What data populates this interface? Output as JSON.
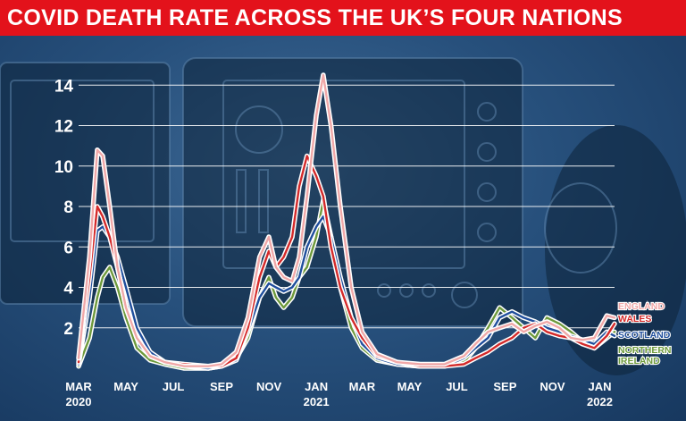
{
  "header": {
    "title": "COVID DEATH RATE ACROSS THE UK’S FOUR NATIONS"
  },
  "chart_data": {
    "type": "line",
    "title": "COVID DEATH RATE ACROSS THE UK’S FOUR NATIONS",
    "xlabel": "",
    "ylabel": "",
    "ylim": [
      0,
      14.5
    ],
    "yticks": [
      2,
      4,
      6,
      8,
      10,
      12,
      14
    ],
    "x_range": [
      "2020-03-01",
      "2022-01-20"
    ],
    "x_ticks": [
      {
        "date": "2020-03-01",
        "label": "MAR",
        "year": "2020"
      },
      {
        "date": "2020-05-01",
        "label": "MAY",
        "year": ""
      },
      {
        "date": "2020-07-01",
        "label": "JUL",
        "year": ""
      },
      {
        "date": "2020-09-01",
        "label": "SEP",
        "year": ""
      },
      {
        "date": "2020-11-01",
        "label": "NOV",
        "year": ""
      },
      {
        "date": "2021-01-01",
        "label": "JAN",
        "year": "2021"
      },
      {
        "date": "2021-03-01",
        "label": "MAR",
        "year": ""
      },
      {
        "date": "2021-05-01",
        "label": "MAY",
        "year": ""
      },
      {
        "date": "2021-07-01",
        "label": "JUL",
        "year": ""
      },
      {
        "date": "2021-09-01",
        "label": "SEP",
        "year": ""
      },
      {
        "date": "2021-11-01",
        "label": "NOV",
        "year": ""
      },
      {
        "date": "2022-01-01",
        "label": "JAN",
        "year": "2022"
      }
    ],
    "grid": true,
    "legend_position": "right",
    "series": [
      {
        "name": "ENGLAND",
        "color": "#f0a8a8",
        "points": [
          [
            "2020-03-01",
            0.5
          ],
          [
            "2020-03-15",
            5.5
          ],
          [
            "2020-03-25",
            10.8
          ],
          [
            "2020-04-01",
            10.5
          ],
          [
            "2020-04-10",
            8.0
          ],
          [
            "2020-04-20",
            5.0
          ],
          [
            "2020-05-01",
            3.0
          ],
          [
            "2020-05-15",
            1.5
          ],
          [
            "2020-06-01",
            0.6
          ],
          [
            "2020-06-20",
            0.3
          ],
          [
            "2020-07-15",
            0.1
          ],
          [
            "2020-08-15",
            0.1
          ],
          [
            "2020-09-01",
            0.2
          ],
          [
            "2020-09-20",
            0.8
          ],
          [
            "2020-10-05",
            2.5
          ],
          [
            "2020-10-20",
            5.5
          ],
          [
            "2020-11-01",
            6.5
          ],
          [
            "2020-11-10",
            5.0
          ],
          [
            "2020-11-20",
            4.5
          ],
          [
            "2020-12-01",
            4.3
          ],
          [
            "2020-12-10",
            5.5
          ],
          [
            "2020-12-20",
            8.5
          ],
          [
            "2021-01-01",
            12.5
          ],
          [
            "2021-01-10",
            14.5
          ],
          [
            "2021-01-20",
            12.0
          ],
          [
            "2021-02-01",
            8.0
          ],
          [
            "2021-02-15",
            4.0
          ],
          [
            "2021-03-01",
            1.8
          ],
          [
            "2021-03-20",
            0.7
          ],
          [
            "2021-04-15",
            0.3
          ],
          [
            "2021-05-15",
            0.2
          ],
          [
            "2021-06-15",
            0.2
          ],
          [
            "2021-07-10",
            0.6
          ],
          [
            "2021-07-25",
            1.2
          ],
          [
            "2021-08-10",
            1.8
          ],
          [
            "2021-08-25",
            2.0
          ],
          [
            "2021-09-10",
            2.2
          ],
          [
            "2021-09-25",
            1.8
          ],
          [
            "2021-10-10",
            2.1
          ],
          [
            "2021-10-25",
            2.3
          ],
          [
            "2021-11-10",
            2.0
          ],
          [
            "2021-11-25",
            1.5
          ],
          [
            "2021-12-10",
            1.4
          ],
          [
            "2021-12-25",
            1.5
          ],
          [
            "2022-01-10",
            2.6
          ],
          [
            "2022-01-20",
            2.5
          ]
        ]
      },
      {
        "name": "WALES",
        "color": "#d42a2a",
        "points": [
          [
            "2020-03-01",
            0.3
          ],
          [
            "2020-03-15",
            4.5
          ],
          [
            "2020-03-25",
            8.0
          ],
          [
            "2020-04-01",
            7.5
          ],
          [
            "2020-04-10",
            6.5
          ],
          [
            "2020-04-20",
            5.0
          ],
          [
            "2020-05-01",
            3.0
          ],
          [
            "2020-05-15",
            1.5
          ],
          [
            "2020-06-01",
            0.6
          ],
          [
            "2020-06-20",
            0.3
          ],
          [
            "2020-07-15",
            0.2
          ],
          [
            "2020-08-15",
            0.1
          ],
          [
            "2020-09-01",
            0.1
          ],
          [
            "2020-09-20",
            0.5
          ],
          [
            "2020-10-05",
            2.0
          ],
          [
            "2020-10-20",
            4.5
          ],
          [
            "2020-11-01",
            5.8
          ],
          [
            "2020-11-10",
            5.0
          ],
          [
            "2020-11-20",
            5.5
          ],
          [
            "2020-12-01",
            6.5
          ],
          [
            "2020-12-10",
            9.0
          ],
          [
            "2020-12-20",
            10.5
          ],
          [
            "2021-01-01",
            9.5
          ],
          [
            "2021-01-10",
            8.5
          ],
          [
            "2021-01-20",
            6.0
          ],
          [
            "2021-02-01",
            4.0
          ],
          [
            "2021-02-15",
            2.5
          ],
          [
            "2021-03-01",
            1.5
          ],
          [
            "2021-03-20",
            0.6
          ],
          [
            "2021-04-15",
            0.3
          ],
          [
            "2021-05-15",
            0.1
          ],
          [
            "2021-06-15",
            0.1
          ],
          [
            "2021-07-10",
            0.2
          ],
          [
            "2021-07-25",
            0.5
          ],
          [
            "2021-08-10",
            0.8
          ],
          [
            "2021-08-25",
            1.2
          ],
          [
            "2021-09-10",
            1.5
          ],
          [
            "2021-09-25",
            2.0
          ],
          [
            "2021-10-10",
            2.2
          ],
          [
            "2021-10-25",
            1.8
          ],
          [
            "2021-11-10",
            1.6
          ],
          [
            "2021-11-25",
            1.5
          ],
          [
            "2021-12-10",
            1.2
          ],
          [
            "2021-12-25",
            1.0
          ],
          [
            "2022-01-10",
            1.6
          ],
          [
            "2022-01-20",
            2.2
          ]
        ]
      },
      {
        "name": "SCOTLAND",
        "color": "#1f4e9c",
        "points": [
          [
            "2020-03-01",
            0.2
          ],
          [
            "2020-03-15",
            3.5
          ],
          [
            "2020-03-25",
            6.8
          ],
          [
            "2020-04-01",
            7.0
          ],
          [
            "2020-04-10",
            6.5
          ],
          [
            "2020-04-20",
            5.5
          ],
          [
            "2020-05-01",
            4.0
          ],
          [
            "2020-05-15",
            2.0
          ],
          [
            "2020-06-01",
            0.8
          ],
          [
            "2020-06-20",
            0.3
          ],
          [
            "2020-07-15",
            0.1
          ],
          [
            "2020-08-15",
            0.0
          ],
          [
            "2020-09-01",
            0.1
          ],
          [
            "2020-09-20",
            0.4
          ],
          [
            "2020-10-05",
            1.8
          ],
          [
            "2020-10-20",
            3.5
          ],
          [
            "2020-11-01",
            4.2
          ],
          [
            "2020-11-10",
            4.0
          ],
          [
            "2020-11-20",
            3.8
          ],
          [
            "2020-12-01",
            4.0
          ],
          [
            "2020-12-10",
            4.5
          ],
          [
            "2020-12-20",
            6.0
          ],
          [
            "2021-01-01",
            7.0
          ],
          [
            "2021-01-10",
            7.5
          ],
          [
            "2021-01-20",
            6.5
          ],
          [
            "2021-02-01",
            4.5
          ],
          [
            "2021-02-15",
            2.5
          ],
          [
            "2021-03-01",
            1.2
          ],
          [
            "2021-03-20",
            0.5
          ],
          [
            "2021-04-15",
            0.2
          ],
          [
            "2021-05-15",
            0.1
          ],
          [
            "2021-06-15",
            0.1
          ],
          [
            "2021-07-10",
            0.5
          ],
          [
            "2021-07-25",
            1.0
          ],
          [
            "2021-08-10",
            1.5
          ],
          [
            "2021-08-25",
            2.5
          ],
          [
            "2021-09-10",
            2.8
          ],
          [
            "2021-09-25",
            2.5
          ],
          [
            "2021-10-10",
            2.3
          ],
          [
            "2021-10-25",
            2.0
          ],
          [
            "2021-11-10",
            1.8
          ],
          [
            "2021-11-25",
            1.6
          ],
          [
            "2021-12-10",
            1.4
          ],
          [
            "2021-12-25",
            1.2
          ],
          [
            "2022-01-10",
            1.8
          ],
          [
            "2022-01-20",
            1.6
          ]
        ]
      },
      {
        "name": "NORTHERN IRELAND",
        "color": "#6e9a3c",
        "points": [
          [
            "2020-03-01",
            0.1
          ],
          [
            "2020-03-15",
            1.5
          ],
          [
            "2020-03-25",
            3.5
          ],
          [
            "2020-04-01",
            4.5
          ],
          [
            "2020-04-10",
            5.0
          ],
          [
            "2020-04-20",
            4.0
          ],
          [
            "2020-05-01",
            2.5
          ],
          [
            "2020-05-15",
            1.0
          ],
          [
            "2020-06-01",
            0.4
          ],
          [
            "2020-06-20",
            0.2
          ],
          [
            "2020-07-15",
            0.0
          ],
          [
            "2020-08-15",
            0.0
          ],
          [
            "2020-09-01",
            0.1
          ],
          [
            "2020-09-20",
            0.5
          ],
          [
            "2020-10-05",
            1.5
          ],
          [
            "2020-10-20",
            3.5
          ],
          [
            "2020-11-01",
            4.5
          ],
          [
            "2020-11-10",
            3.5
          ],
          [
            "2020-11-20",
            3.0
          ],
          [
            "2020-12-01",
            3.5
          ],
          [
            "2020-12-10",
            4.5
          ],
          [
            "2020-12-20",
            5.0
          ],
          [
            "2021-01-01",
            6.5
          ],
          [
            "2021-01-10",
            8.3
          ],
          [
            "2021-01-20",
            6.5
          ],
          [
            "2021-02-01",
            4.0
          ],
          [
            "2021-02-15",
            2.0
          ],
          [
            "2021-03-01",
            1.0
          ],
          [
            "2021-03-20",
            0.4
          ],
          [
            "2021-04-15",
            0.2
          ],
          [
            "2021-05-15",
            0.1
          ],
          [
            "2021-06-15",
            0.1
          ],
          [
            "2021-07-10",
            0.3
          ],
          [
            "2021-07-25",
            1.0
          ],
          [
            "2021-08-10",
            2.0
          ],
          [
            "2021-08-25",
            3.0
          ],
          [
            "2021-09-10",
            2.5
          ],
          [
            "2021-09-25",
            2.0
          ],
          [
            "2021-10-10",
            1.5
          ],
          [
            "2021-10-25",
            2.5
          ],
          [
            "2021-11-10",
            2.2
          ],
          [
            "2021-11-25",
            1.8
          ],
          [
            "2021-12-10",
            1.3
          ],
          [
            "2021-12-25",
            1.0
          ],
          [
            "2022-01-10",
            1.5
          ],
          [
            "2022-01-20",
            1.8
          ]
        ]
      }
    ]
  }
}
